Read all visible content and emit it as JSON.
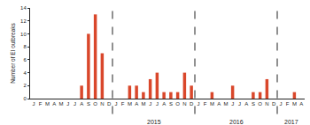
{
  "chart_data": {
    "type": "bar",
    "y_label": "Number of EI outbreaks",
    "categories": [
      "J",
      "F",
      "M",
      "A",
      "M",
      "J",
      "J",
      "A",
      "S",
      "O",
      "N",
      "D",
      "J",
      "F",
      "M",
      "A",
      "M",
      "J",
      "J",
      "A",
      "S",
      "O",
      "N",
      "D",
      "J",
      "F",
      "M",
      "A",
      "M",
      "J",
      "J",
      "A",
      "S",
      "O",
      "N",
      "D",
      "J",
      "F",
      "M",
      "A"
    ],
    "values": [
      0,
      0,
      0,
      0,
      0,
      0,
      0,
      2,
      10,
      13,
      7,
      0,
      0,
      0,
      2,
      2,
      1,
      3,
      4,
      1,
      1,
      1,
      4,
      2,
      0,
      0,
      1,
      0,
      0,
      2,
      0,
      0,
      1,
      1,
      3,
      0,
      0,
      0,
      1,
      0
    ],
    "year_labels": [
      null,
      "2015",
      "2016",
      "2017"
    ],
    "color": "#d9472b",
    "ylim": [
      0,
      14
    ],
    "yticks": [
      0,
      2,
      4,
      6,
      8,
      10,
      12,
      14
    ],
    "grid": false
  }
}
